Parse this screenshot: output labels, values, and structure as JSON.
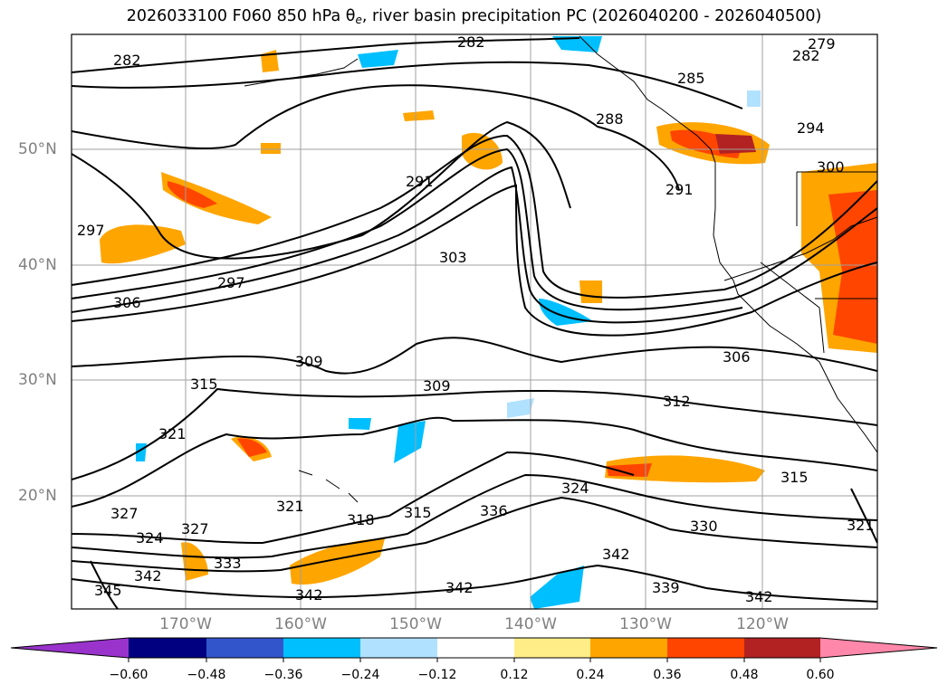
{
  "title": {
    "main_before": "2026033100 F060 850 hPa ",
    "theta": "θ",
    "theta_sub": "e",
    "main_after": ", river basin precipitation PC (2026040200 - 2026040500)"
  },
  "lat_labels": [
    "50°N",
    "40°N",
    "30°N",
    "20°N"
  ],
  "lon_labels": [
    "170°W",
    "160°W",
    "150°W",
    "140°W",
    "130°W",
    "120°W"
  ],
  "contour_labels": [
    "282",
    "282",
    "282",
    "279",
    "285",
    "288",
    "294",
    "300",
    "291",
    "291",
    "297",
    "297",
    "303",
    "306",
    "306",
    "309",
    "309",
    "312",
    "315",
    "315",
    "321",
    "321",
    "318",
    "315",
    "324",
    "327",
    "327",
    "324",
    "336",
    "330",
    "333",
    "342",
    "342",
    "342",
    "342",
    "339",
    "342",
    "345",
    "321"
  ],
  "colorbar": {
    "ticks": [
      "−0.60",
      "−0.48",
      "−0.36",
      "−0.24",
      "−0.12",
      "0.12",
      "0.24",
      "0.36",
      "0.48",
      "0.60"
    ],
    "colors": [
      "#9933cc",
      "#000080",
      "#3355cc",
      "#00bfff",
      "#b0e2ff",
      "#ffffff",
      "#ffee88",
      "#ffa500",
      "#ff4500",
      "#b22222",
      "#ff88aa"
    ]
  }
}
